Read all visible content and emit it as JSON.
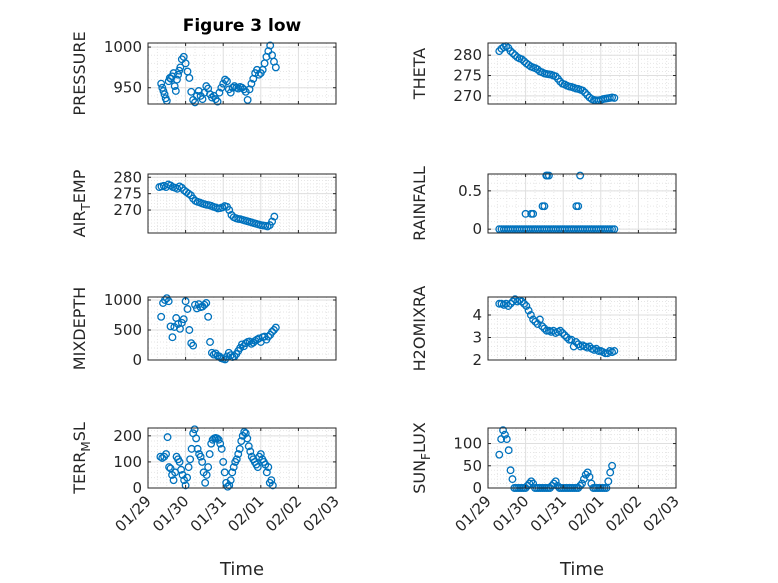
{
  "figure_title": "Figure 3 low",
  "colors": {
    "marker": "#0072BD",
    "axis": "#262626",
    "grid": "#DFDFDF"
  },
  "chart_data": [
    {
      "type": "scatter",
      "panel": "top-left",
      "title": "Figure 3 low",
      "ylabel": "PRESSURE",
      "ylabel_sub": null,
      "xlabel": "",
      "ylim": [
        930,
        1005
      ],
      "yticks": [
        950,
        1000
      ],
      "xticks": [
        "01/29",
        "01/30",
        "01/31",
        "02/01",
        "02/02",
        "02/03"
      ],
      "show_xticklabels": false,
      "x": [
        0.35,
        0.38,
        0.41,
        0.44,
        0.47,
        0.5,
        0.55,
        0.58,
        0.61,
        0.64,
        0.68,
        0.71,
        0.74,
        0.77,
        0.8,
        0.83,
        0.86,
        0.9,
        0.95,
        1.0,
        1.05,
        1.1,
        1.15,
        1.2,
        1.25,
        1.3,
        1.35,
        1.4,
        1.45,
        1.5,
        1.55,
        1.6,
        1.65,
        1.7,
        1.75,
        1.8,
        1.85,
        1.9,
        1.95,
        2.0,
        2.05,
        2.1,
        2.15,
        2.2,
        2.25,
        2.3,
        2.35,
        2.4,
        2.45,
        2.5,
        2.55,
        2.6,
        2.65,
        2.7,
        2.75,
        2.8,
        2.85,
        2.9,
        2.95,
        3.0,
        3.05,
        3.1,
        3.15,
        3.2,
        3.25,
        3.3,
        3.35,
        3.4
      ],
      "y": [
        955,
        950,
        946,
        942,
        937,
        934,
        958,
        962,
        961,
        964,
        968,
        952,
        946,
        960,
        966,
        971,
        975,
        985,
        988,
        980,
        970,
        962,
        945,
        935,
        932,
        940,
        946,
        940,
        936,
        944,
        952,
        949,
        942,
        938,
        940,
        936,
        933,
        944,
        950,
        955,
        960,
        958,
        948,
        944,
        950,
        952,
        950,
        949,
        951,
        950,
        948,
        945,
        935,
        948,
        955,
        961,
        968,
        972,
        966,
        968,
        972,
        980,
        988,
        995,
        1002,
        990,
        982,
        975
      ]
    },
    {
      "type": "scatter",
      "panel": "top-right",
      "ylabel": "THETA",
      "ylabel_sub": null,
      "xlabel": "",
      "ylim": [
        268,
        283
      ],
      "yticks": [
        270,
        275,
        280
      ],
      "xticks": [
        "01/29",
        "01/30",
        "01/31",
        "02/01",
        "02/02",
        "02/03"
      ],
      "show_xticklabels": false,
      "x": [
        0.3,
        0.36,
        0.42,
        0.48,
        0.54,
        0.6,
        0.66,
        0.72,
        0.78,
        0.84,
        0.9,
        0.96,
        1.02,
        1.08,
        1.14,
        1.2,
        1.26,
        1.32,
        1.38,
        1.44,
        1.5,
        1.56,
        1.62,
        1.68,
        1.74,
        1.8,
        1.86,
        1.92,
        1.98,
        2.04,
        2.1,
        2.16,
        2.22,
        2.28,
        2.34,
        2.4,
        2.46,
        2.52,
        2.58,
        2.64,
        2.7,
        2.76,
        2.82,
        2.88,
        2.94,
        3.0,
        3.06,
        3.12,
        3.18,
        3.24,
        3.3,
        3.36
      ],
      "y": [
        281,
        281.6,
        282,
        282.2,
        281.8,
        281,
        280.5,
        280,
        279.5,
        279.2,
        279,
        278.5,
        278,
        277.6,
        277.2,
        277,
        276.8,
        276.5,
        276,
        275.8,
        275.5,
        275.4,
        275.3,
        275.2,
        275,
        274.8,
        274.2,
        273.5,
        273,
        272.8,
        272.5,
        272.3,
        272.2,
        272,
        271.8,
        271.7,
        271.5,
        271.3,
        270.8,
        270.2,
        269.6,
        269.2,
        269,
        268.9,
        268.9,
        269,
        269.2,
        269.3,
        269.4,
        269.5,
        269.6,
        269.5
      ]
    },
    {
      "type": "scatter",
      "panel": "second-left",
      "ylabel": "AIR",
      "ylabel_sub": "T",
      "ylabel_suffix": "EMP",
      "xlabel": "",
      "ylim": [
        263,
        281
      ],
      "yticks": [
        270,
        275,
        280
      ],
      "xticks": [
        "01/29",
        "01/30",
        "01/31",
        "02/01",
        "02/02",
        "02/03"
      ],
      "show_xticklabels": false,
      "x": [
        0.3,
        0.36,
        0.42,
        0.48,
        0.54,
        0.6,
        0.66,
        0.72,
        0.78,
        0.84,
        0.9,
        0.96,
        1.02,
        1.08,
        1.14,
        1.2,
        1.26,
        1.32,
        1.38,
        1.44,
        1.5,
        1.56,
        1.62,
        1.68,
        1.74,
        1.8,
        1.86,
        1.92,
        1.98,
        2.04,
        2.1,
        2.16,
        2.22,
        2.28,
        2.34,
        2.4,
        2.46,
        2.52,
        2.58,
        2.64,
        2.7,
        2.76,
        2.82,
        2.88,
        2.94,
        3.0,
        3.06,
        3.12,
        3.18,
        3.24,
        3.3,
        3.36
      ],
      "y": [
        277,
        277.2,
        277.4,
        277,
        277.8,
        277.5,
        277,
        276.8,
        276.5,
        277.2,
        276.8,
        276,
        275.5,
        275,
        274.5,
        273.5,
        272.8,
        272.5,
        272.3,
        272,
        271.8,
        271.6,
        271.5,
        271.3,
        271,
        270.8,
        270.5,
        270.6,
        270.8,
        271.2,
        271,
        270,
        268.5,
        267.8,
        267.5,
        267.3,
        267.2,
        267,
        266.8,
        266.6,
        266.4,
        266.2,
        266,
        265.8,
        265.6,
        265.4,
        265.3,
        265.2,
        265,
        265.4,
        266.5,
        268
      ]
    },
    {
      "type": "scatter",
      "panel": "second-right",
      "ylabel": "RAINFALL",
      "ylabel_sub": null,
      "xlabel": "",
      "ylim": [
        -0.05,
        0.72
      ],
      "yticks": [
        0,
        0.5
      ],
      "xticks": [
        "01/29",
        "01/30",
        "01/31",
        "02/01",
        "02/02",
        "02/03"
      ],
      "show_xticklabels": false,
      "x": [
        0.3,
        0.36,
        0.42,
        0.48,
        0.54,
        0.6,
        0.66,
        0.72,
        0.78,
        0.84,
        0.9,
        0.96,
        1.02,
        1.08,
        1.14,
        1.2,
        1.26,
        1.32,
        1.38,
        1.44,
        1.5,
        1.56,
        1.62,
        1.68,
        1.74,
        1.8,
        1.86,
        1.92,
        1.98,
        2.04,
        2.1,
        2.16,
        2.22,
        2.28,
        2.34,
        2.4,
        2.46,
        2.52,
        2.58,
        2.64,
        2.7,
        2.76,
        2.82,
        2.88,
        2.94,
        3.0,
        3.06,
        3.12,
        3.18,
        3.24,
        3.3,
        3.36,
        1.0,
        1.15,
        1.2,
        1.45,
        1.5,
        1.55,
        1.57,
        1.62,
        2.35,
        2.4,
        2.45
      ],
      "y": [
        0,
        0,
        0,
        0,
        0,
        0,
        0,
        0,
        0,
        0,
        0,
        0,
        0,
        0,
        0,
        0,
        0,
        0,
        0,
        0,
        0,
        0,
        0,
        0,
        0,
        0,
        0,
        0,
        0,
        0,
        0,
        0,
        0,
        0,
        0,
        0,
        0,
        0,
        0,
        0,
        0,
        0,
        0,
        0,
        0,
        0,
        0,
        0,
        0,
        0,
        0,
        0,
        0.2,
        0.2,
        0.2,
        0.3,
        0.3,
        0.7,
        0.7,
        0.7,
        0.3,
        0.3,
        0.7
      ]
    },
    {
      "type": "scatter",
      "panel": "third-left",
      "ylabel": "MIXDEPTH",
      "ylabel_sub": null,
      "xlabel": "",
      "ylim": [
        0,
        1050
      ],
      "yticks": [
        0,
        500,
        1000
      ],
      "xticks": [
        "01/29",
        "01/30",
        "01/31",
        "02/01",
        "02/02",
        "02/03"
      ],
      "show_xticklabels": false,
      "x": [
        0.35,
        0.4,
        0.45,
        0.5,
        0.55,
        0.6,
        0.65,
        0.7,
        0.75,
        0.8,
        0.85,
        0.9,
        0.95,
        1.0,
        1.05,
        1.1,
        1.15,
        1.2,
        1.25,
        1.3,
        1.35,
        1.4,
        1.45,
        1.5,
        1.55,
        1.6,
        1.65,
        1.7,
        1.75,
        1.8,
        1.85,
        1.9,
        1.95,
        2.0,
        2.05,
        2.1,
        2.15,
        2.2,
        2.25,
        2.3,
        2.35,
        2.4,
        2.45,
        2.5,
        2.55,
        2.6,
        2.65,
        2.7,
        2.75,
        2.8,
        2.85,
        2.9,
        2.95,
        3.0,
        3.05,
        3.1,
        3.15,
        3.2,
        3.25,
        3.3,
        3.35,
        3.4
      ],
      "y": [
        720,
        950,
        1000,
        1030,
        980,
        560,
        380,
        550,
        700,
        600,
        520,
        620,
        680,
        980,
        850,
        500,
        280,
        240,
        920,
        860,
        930,
        880,
        890,
        920,
        950,
        720,
        300,
        120,
        90,
        110,
        70,
        60,
        30,
        20,
        10,
        60,
        120,
        80,
        50,
        60,
        100,
        150,
        200,
        260,
        230,
        280,
        300,
        310,
        270,
        290,
        320,
        340,
        360,
        300,
        380,
        390,
        340,
        390,
        420,
        470,
        500,
        540
      ]
    },
    {
      "type": "scatter",
      "panel": "third-right",
      "ylabel": "H2OMIXRA",
      "ylabel_sub": null,
      "xlabel": "",
      "ylim": [
        2,
        4.8
      ],
      "yticks": [
        2,
        3,
        4
      ],
      "xticks": [
        "01/29",
        "01/30",
        "01/31",
        "02/01",
        "02/02",
        "02/03"
      ],
      "show_xticklabels": false,
      "x": [
        0.3,
        0.36,
        0.42,
        0.48,
        0.54,
        0.6,
        0.66,
        0.72,
        0.78,
        0.84,
        0.9,
        0.96,
        1.02,
        1.08,
        1.14,
        1.2,
        1.26,
        1.32,
        1.38,
        1.44,
        1.5,
        1.56,
        1.62,
        1.68,
        1.74,
        1.8,
        1.86,
        1.92,
        1.98,
        2.04,
        2.1,
        2.16,
        2.22,
        2.28,
        2.34,
        2.4,
        2.46,
        2.52,
        2.58,
        2.64,
        2.7,
        2.76,
        2.82,
        2.88,
        2.94,
        3.0,
        3.06,
        3.12,
        3.18,
        3.24,
        3.3,
        3.36
      ],
      "y": [
        4.5,
        4.5,
        4.45,
        4.5,
        4.4,
        4.5,
        4.6,
        4.7,
        4.6,
        4.65,
        4.6,
        4.5,
        4.4,
        4.2,
        4.0,
        3.8,
        3.7,
        3.6,
        3.8,
        3.5,
        3.4,
        3.3,
        3.3,
        3.25,
        3.3,
        3.2,
        3.25,
        3.3,
        3.2,
        3.1,
        3.0,
        2.9,
        2.9,
        2.6,
        2.8,
        2.7,
        2.6,
        2.65,
        2.6,
        2.55,
        2.6,
        2.5,
        2.45,
        2.5,
        2.4,
        2.4,
        2.35,
        2.3,
        2.3,
        2.4,
        2.35,
        2.4
      ]
    },
    {
      "type": "scatter",
      "panel": "bottom-left",
      "ylabel": "TERR",
      "ylabel_sub": "M",
      "ylabel_suffix": "SL",
      "xlabel": "Time",
      "ylim": [
        0,
        230
      ],
      "yticks": [
        0,
        100,
        200
      ],
      "xticks": [
        "01/29",
        "01/30",
        "01/31",
        "02/01",
        "02/02",
        "02/03"
      ],
      "show_xticklabels": true,
      "x": [
        0.33,
        0.38,
        0.43,
        0.48,
        0.52,
        0.56,
        0.6,
        0.64,
        0.68,
        0.72,
        0.76,
        0.8,
        0.84,
        0.88,
        0.92,
        0.96,
        1.0,
        1.04,
        1.08,
        1.12,
        1.16,
        1.2,
        1.24,
        1.28,
        1.32,
        1.36,
        1.4,
        1.44,
        1.48,
        1.52,
        1.56,
        1.6,
        1.64,
        1.68,
        1.72,
        1.76,
        1.8,
        1.84,
        1.88,
        1.92,
        1.96,
        2.0,
        2.04,
        2.08,
        2.12,
        2.16,
        2.2,
        2.24,
        2.28,
        2.32,
        2.36,
        2.4,
        2.44,
        2.48,
        2.52,
        2.56,
        2.6,
        2.64,
        2.68,
        2.72,
        2.76,
        2.8,
        2.84,
        2.88,
        2.92,
        2.96,
        3.0,
        3.04,
        3.08,
        3.12,
        3.16,
        3.2,
        3.24,
        3.28,
        3.32
      ],
      "y": [
        120,
        115,
        120,
        130,
        195,
        80,
        75,
        50,
        30,
        60,
        120,
        110,
        100,
        70,
        50,
        30,
        10,
        40,
        80,
        110,
        150,
        210,
        225,
        190,
        150,
        130,
        120,
        100,
        60,
        20,
        50,
        80,
        130,
        170,
        185,
        190,
        192,
        190,
        185,
        170,
        150,
        100,
        60,
        20,
        5,
        10,
        30,
        60,
        80,
        100,
        110,
        130,
        150,
        180,
        200,
        215,
        210,
        190,
        160,
        140,
        120,
        110,
        100,
        90,
        80,
        120,
        130,
        110,
        100,
        90,
        60,
        80,
        20,
        30,
        10
      ]
    },
    {
      "type": "scatter",
      "panel": "bottom-right",
      "ylabel": "SUN",
      "ylabel_sub": "F",
      "ylabel_suffix": "LUX",
      "xlabel": "Time",
      "ylim": [
        0,
        135
      ],
      "yticks": [
        0,
        50,
        100
      ],
      "xticks": [
        "01/29",
        "01/30",
        "01/31",
        "02/01",
        "02/02",
        "02/03"
      ],
      "show_xticklabels": true,
      "x": [
        0.3,
        0.35,
        0.4,
        0.45,
        0.5,
        0.55,
        0.6,
        0.65,
        0.7,
        0.75,
        0.8,
        0.85,
        0.9,
        0.95,
        1.0,
        1.05,
        1.1,
        1.15,
        1.2,
        1.25,
        1.3,
        1.35,
        1.4,
        1.45,
        1.5,
        1.55,
        1.6,
        1.65,
        1.7,
        1.75,
        1.8,
        1.85,
        1.9,
        1.95,
        2.0,
        2.05,
        2.1,
        2.15,
        2.2,
        2.25,
        2.3,
        2.35,
        2.4,
        2.45,
        2.5,
        2.55,
        2.6,
        2.65,
        2.7,
        2.75,
        2.8,
        2.85,
        2.9,
        2.95,
        3.0,
        3.05,
        3.1,
        3.15,
        3.2,
        3.25,
        3.3
      ],
      "y": [
        75,
        110,
        130,
        120,
        110,
        85,
        40,
        20,
        0,
        0,
        0,
        0,
        0,
        0,
        0,
        5,
        10,
        15,
        10,
        0,
        0,
        0,
        0,
        0,
        0,
        0,
        0,
        0,
        5,
        10,
        15,
        5,
        0,
        0,
        0,
        0,
        0,
        0,
        0,
        0,
        0,
        0,
        0,
        5,
        10,
        20,
        30,
        35,
        25,
        10,
        0,
        0,
        0,
        0,
        0,
        0,
        0,
        0,
        15,
        35,
        50
      ]
    }
  ]
}
